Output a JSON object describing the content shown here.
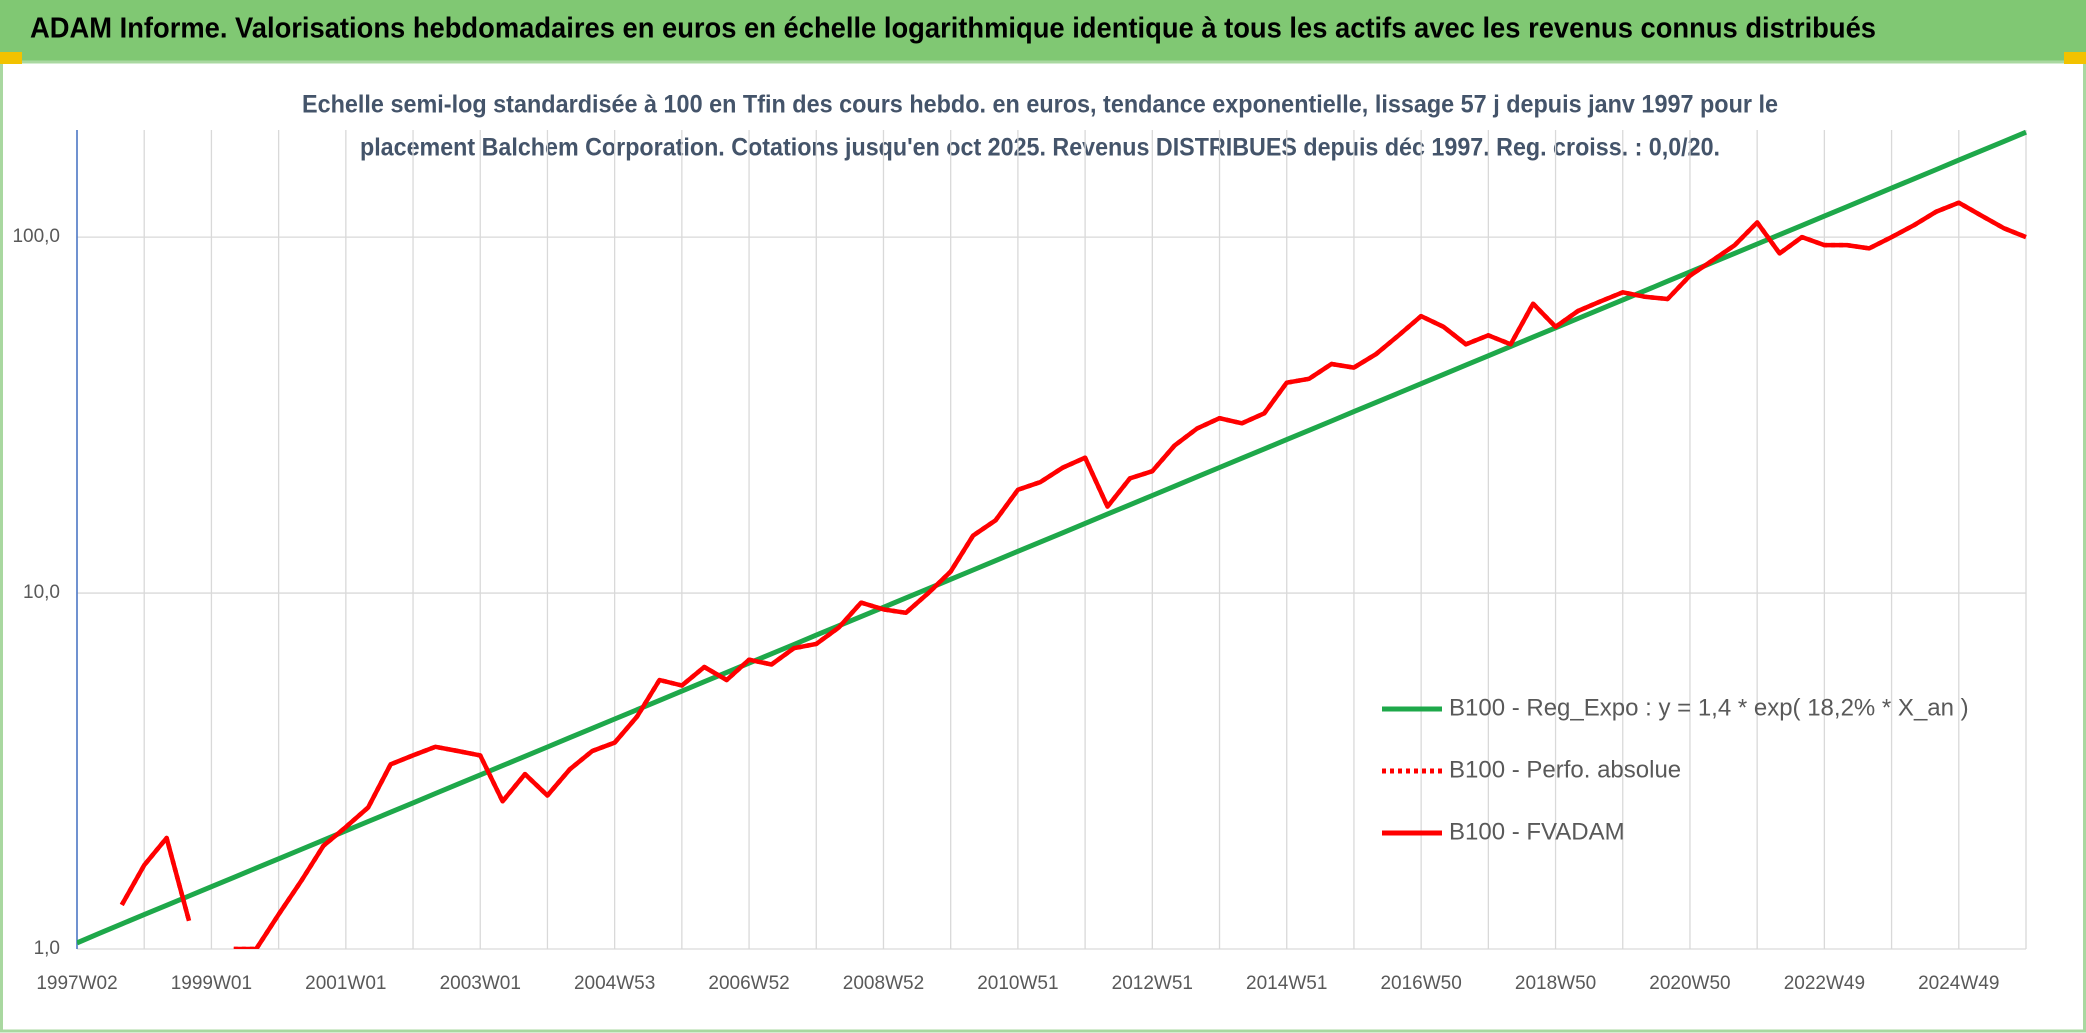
{
  "chart_data": {
    "type": "line",
    "title": "ADAM Informe. Valorisations hebdomadaires en euros en échelle logarithmique identique à tous les actifs avec les revenus connus distribués",
    "subtitle": [
      "Echelle semi-log standardisée à 100 en Tfin des cours hebdo. en euros, tendance exponentielle, lissage 57 j depuis janv 1997 pour le",
      "placement Balchem Corporation. Cotations jusqu'en oct 2025. Revenus DISTRIBUES depuis déc 1997. Reg. croiss. : 0,0/20."
    ],
    "categories": [
      "1997W02",
      null,
      null,
      null,
      null,
      null,
      "1999W01",
      null,
      null,
      null,
      null,
      null,
      "2001W01",
      null,
      null,
      null,
      null,
      null,
      "2003W01",
      null,
      null,
      null,
      null,
      null,
      "2004W53",
      null,
      null,
      null,
      null,
      null,
      "2006W52",
      null,
      null,
      null,
      null,
      null,
      "2008W52",
      null,
      null,
      null,
      null,
      null,
      "2010W51",
      null,
      null,
      null,
      null,
      null,
      "2012W51",
      null,
      null,
      null,
      null,
      null,
      "2014W51",
      null,
      null,
      null,
      null,
      null,
      "2016W50",
      null,
      null,
      null,
      null,
      null,
      "2018W50",
      null,
      null,
      null,
      null,
      null,
      "2020W50",
      null,
      null,
      null,
      null,
      null,
      "2022W49",
      null,
      null,
      null,
      null,
      null,
      "2024W49",
      null,
      null,
      null
    ],
    "log_scale": true,
    "ylim": [
      1,
      200
    ],
    "yticks": [
      {
        "value": 1,
        "label": "1,0"
      },
      {
        "value": 10,
        "label": "10,0"
      },
      {
        "value": 100,
        "label": "100,0"
      }
    ],
    "grid": true,
    "legend": "lower right",
    "series": [
      {
        "name": "B100 - Reg_Expo : y = 1,4 * exp( 18,2% *  X_an )",
        "color": "#1ea84a",
        "style": "solid",
        "values": [
          1.04,
          1.107,
          1.176,
          1.249,
          1.327,
          1.409,
          1.496,
          1.589,
          1.688,
          1.792,
          1.904,
          2.022,
          2.148,
          2.281,
          2.423,
          2.574,
          2.734,
          2.904,
          3.084,
          3.275,
          3.479,
          3.695,
          3.925,
          4.169,
          4.428,
          4.703,
          4.995,
          5.305,
          5.635,
          5.985,
          6.357,
          6.752,
          7.171,
          7.617,
          8.09,
          8.59,
          9.123,
          9.69,
          10.29,
          10.93,
          11.61,
          12.33,
          13.1,
          13.91,
          14.77,
          15.69,
          16.67,
          17.7,
          18.8,
          19.97,
          21.21,
          22.53,
          23.93,
          25.41,
          26.99,
          28.67,
          30.45,
          32.34,
          34.35,
          36.48,
          38.75,
          41.16,
          43.71,
          46.42,
          49.31,
          52.37,
          55.62,
          59.08,
          62.75,
          66.64,
          70.78,
          75.18,
          79.85,
          84.81,
          90.07,
          95.67,
          101.6,
          107.9,
          114.6,
          121.7,
          129.3,
          137.3,
          145.9,
          154.9,
          164.6,
          174.8,
          185.6,
          197.2
        ]
      },
      {
        "name": "B100 - Perfo. absolue",
        "color": "#ff0000",
        "style": "dotted",
        "values": [
          null,
          null,
          1.33,
          1.72,
          2.05,
          1.2,
          null,
          1.0,
          1.0,
          1.25,
          1.55,
          1.95,
          2.2,
          2.5,
          3.3,
          3.5,
          3.7,
          3.6,
          3.5,
          2.6,
          3.1,
          2.7,
          3.2,
          3.6,
          3.8,
          4.5,
          5.7,
          5.5,
          6.2,
          5.7,
          6.5,
          6.3,
          7.0,
          7.2,
          8.0,
          9.4,
          9.0,
          8.8,
          10.0,
          11.5,
          14.5,
          16.0,
          19.5,
          20.5,
          22.5,
          24,
          17.5,
          21,
          22,
          26,
          29,
          31,
          30,
          32,
          39,
          40,
          44,
          43,
          47,
          53,
          60,
          56,
          50,
          53,
          50,
          65,
          56,
          62,
          66,
          70,
          68,
          67,
          78,
          86,
          95,
          110,
          90,
          100,
          95,
          95,
          93,
          100,
          108,
          118,
          125,
          115,
          106,
          100
        ]
      },
      {
        "name": "B100 - FVADAM",
        "color": "#ff0000",
        "style": "solid",
        "values": [
          null,
          null,
          1.33,
          1.72,
          2.05,
          1.2,
          null,
          1.0,
          1.0,
          1.25,
          1.55,
          1.95,
          2.2,
          2.5,
          3.3,
          3.5,
          3.7,
          3.6,
          3.5,
          2.6,
          3.1,
          2.7,
          3.2,
          3.6,
          3.8,
          4.5,
          5.7,
          5.5,
          6.2,
          5.7,
          6.5,
          6.3,
          7.0,
          7.2,
          8.0,
          9.4,
          9.0,
          8.8,
          10.0,
          11.5,
          14.5,
          16.0,
          19.5,
          20.5,
          22.5,
          24,
          17.5,
          21,
          22,
          26,
          29,
          31,
          30,
          32,
          39,
          40,
          44,
          43,
          47,
          53,
          60,
          56,
          50,
          53,
          50,
          65,
          56,
          62,
          66,
          70,
          68,
          67,
          78,
          86,
          95,
          110,
          90,
          100,
          95,
          95,
          93,
          100,
          108,
          118,
          125,
          115,
          106,
          100
        ]
      }
    ]
  }
}
